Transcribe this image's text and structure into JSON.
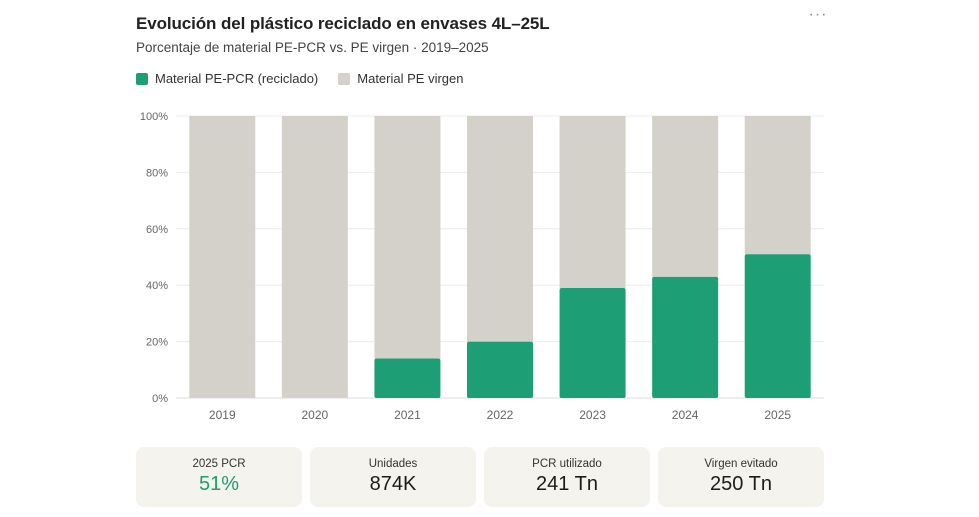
{
  "header": {
    "title": "Evolución del plástico reciclado en envases 4L–25L",
    "subtitle": "Porcentaje de material PE-PCR vs. PE virgen · 2019–2025",
    "menu_icon": "more-horizontal-icon",
    "menu_glyph": "···"
  },
  "legend": [
    {
      "label": "Material PE-PCR (reciclado)",
      "color": "#1e9e74"
    },
    {
      "label": "Material PE virgen",
      "color": "#d3d1c9"
    }
  ],
  "chart_data": {
    "type": "bar",
    "stacked": true,
    "categories": [
      "2019",
      "2020",
      "2021",
      "2022",
      "2023",
      "2024",
      "2025"
    ],
    "series": [
      {
        "name": "Material PE-PCR (reciclado)",
        "color": "#1e9e74",
        "values": [
          0,
          0,
          14,
          20,
          39,
          43,
          51
        ]
      },
      {
        "name": "Material PE virgen",
        "color": "#d3d1c9",
        "values": [
          100,
          100,
          86,
          80,
          61,
          57,
          49
        ]
      }
    ],
    "ylim": [
      0,
      100
    ],
    "yticks": [
      "0%",
      "20%",
      "40%",
      "60%",
      "80%",
      "100%"
    ],
    "ytick_values": [
      0,
      20,
      40,
      60,
      80,
      100
    ],
    "grid": true,
    "legend_position": "top-left"
  },
  "kpis": [
    {
      "label": "2025 PCR",
      "value": "51%",
      "accent": true
    },
    {
      "label": "Unidades",
      "value": "874K",
      "accent": false
    },
    {
      "label": "PCR utilizado",
      "value": "241 Tn",
      "accent": false
    },
    {
      "label": "Virgen evitado",
      "value": "250 Tn",
      "accent": false
    }
  ]
}
